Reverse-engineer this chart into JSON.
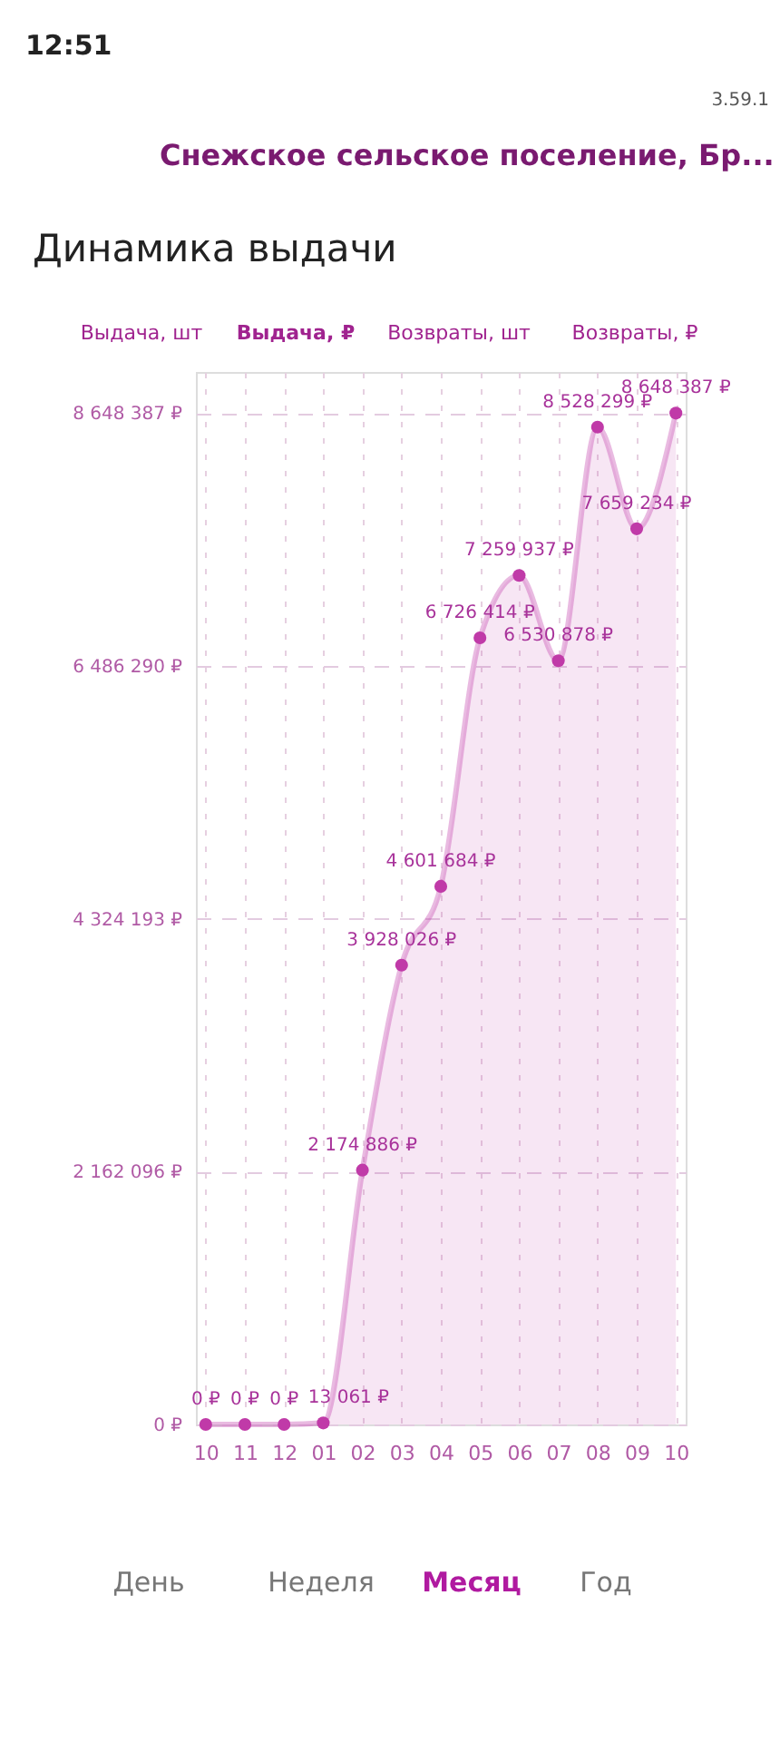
{
  "chart_data": {
    "type": "area",
    "title": "Динамика выдачи",
    "annotations": [
      "12:51",
      "3.59.1",
      "Снежское сельское поселение, Бр...",
      "Выдача, шт",
      "Выдача, ₽",
      "Возвраты, шт",
      "Возвраты, ₽",
      "День",
      "Неделя",
      "Месяц",
      "Год"
    ],
    "categories": [
      "10",
      "11",
      "12",
      "01",
      "02",
      "03",
      "04",
      "05",
      "06",
      "07",
      "08",
      "09",
      "10"
    ],
    "series": [
      {
        "color": "#c03aa8",
        "values": [
          0,
          0,
          0,
          13061,
          2174886,
          3928026,
          4601684,
          6726414,
          7259937,
          6530878,
          8528299,
          7659234,
          8648387
        ],
        "value_labels": [
          "0 ₽",
          "0 ₽",
          "0 ₽",
          "13 061 ₽",
          "2 174 886 ₽",
          "3 928 026 ₽",
          "4 601 684 ₽",
          "6 726 414 ₽",
          "7 259 937 ₽",
          "6 530 878 ₽",
          "8 528 299 ₽",
          "7 659 234 ₽",
          "8 648 387 ₽"
        ]
      }
    ],
    "ylim": [
      0,
      9000000
    ],
    "yticks": [
      {
        "value": 0,
        "label": "0 ₽"
      },
      {
        "value": 2162096,
        "label": "2 162 096 ₽"
      },
      {
        "value": 4324193,
        "label": "4 324 193 ₽"
      },
      {
        "value": 6486290,
        "label": "6 486 290 ₽"
      },
      {
        "value": 8648387,
        "label": "8 648 387 ₽"
      }
    ],
    "grid": true,
    "marker": "circle"
  }
}
